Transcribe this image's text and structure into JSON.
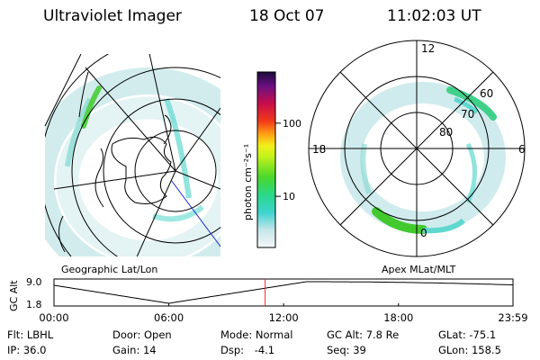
{
  "header": {
    "instrument": "Ultraviolet Imager",
    "date": "18 Oct 07",
    "time": "11:02:03 UT"
  },
  "maps": {
    "left_label": "Geographic Lat/Lon",
    "right_label": "Apex MLat/MLT",
    "mlt_labels": [
      "12",
      "18",
      "6",
      "0"
    ],
    "lat_labels": [
      "60",
      "70",
      "80"
    ]
  },
  "colorbar": {
    "unit": "photon cm⁻²s⁻¹",
    "ticks": [
      {
        "value": 100,
        "label": "100"
      },
      {
        "value": 10,
        "label": "10"
      }
    ],
    "range": [
      2,
      500
    ]
  },
  "altitude_plot": {
    "ylabel": "GC Alt",
    "yticks": [
      "9.0",
      "1.8"
    ],
    "xticks": [
      "00:00",
      "06:00",
      "12:00",
      "18:00",
      "23:59"
    ],
    "marker_time": "11:02",
    "marker_color": "#ff2020"
  },
  "info": {
    "flt_label": "Flt:",
    "flt_value": "LBHL",
    "ip_label": "IP:",
    "ip_value": "36.0",
    "door_label": "Door:",
    "door_value": "Open",
    "gain_label": "Gain:",
    "gain_value": "14",
    "mode_label": "Mode:",
    "mode_value": "Normal",
    "dsp_label": "Dsp:",
    "dsp_value": "-4.1",
    "gcalt_label": "GC Alt:",
    "gcalt_value": "7.8 Re",
    "seq_label": "Seq:",
    "seq_value": "39",
    "glat_label": "GLat:",
    "glat_value": "-75.1",
    "glon_label": "GLon:",
    "glon_value": "158.5"
  }
}
